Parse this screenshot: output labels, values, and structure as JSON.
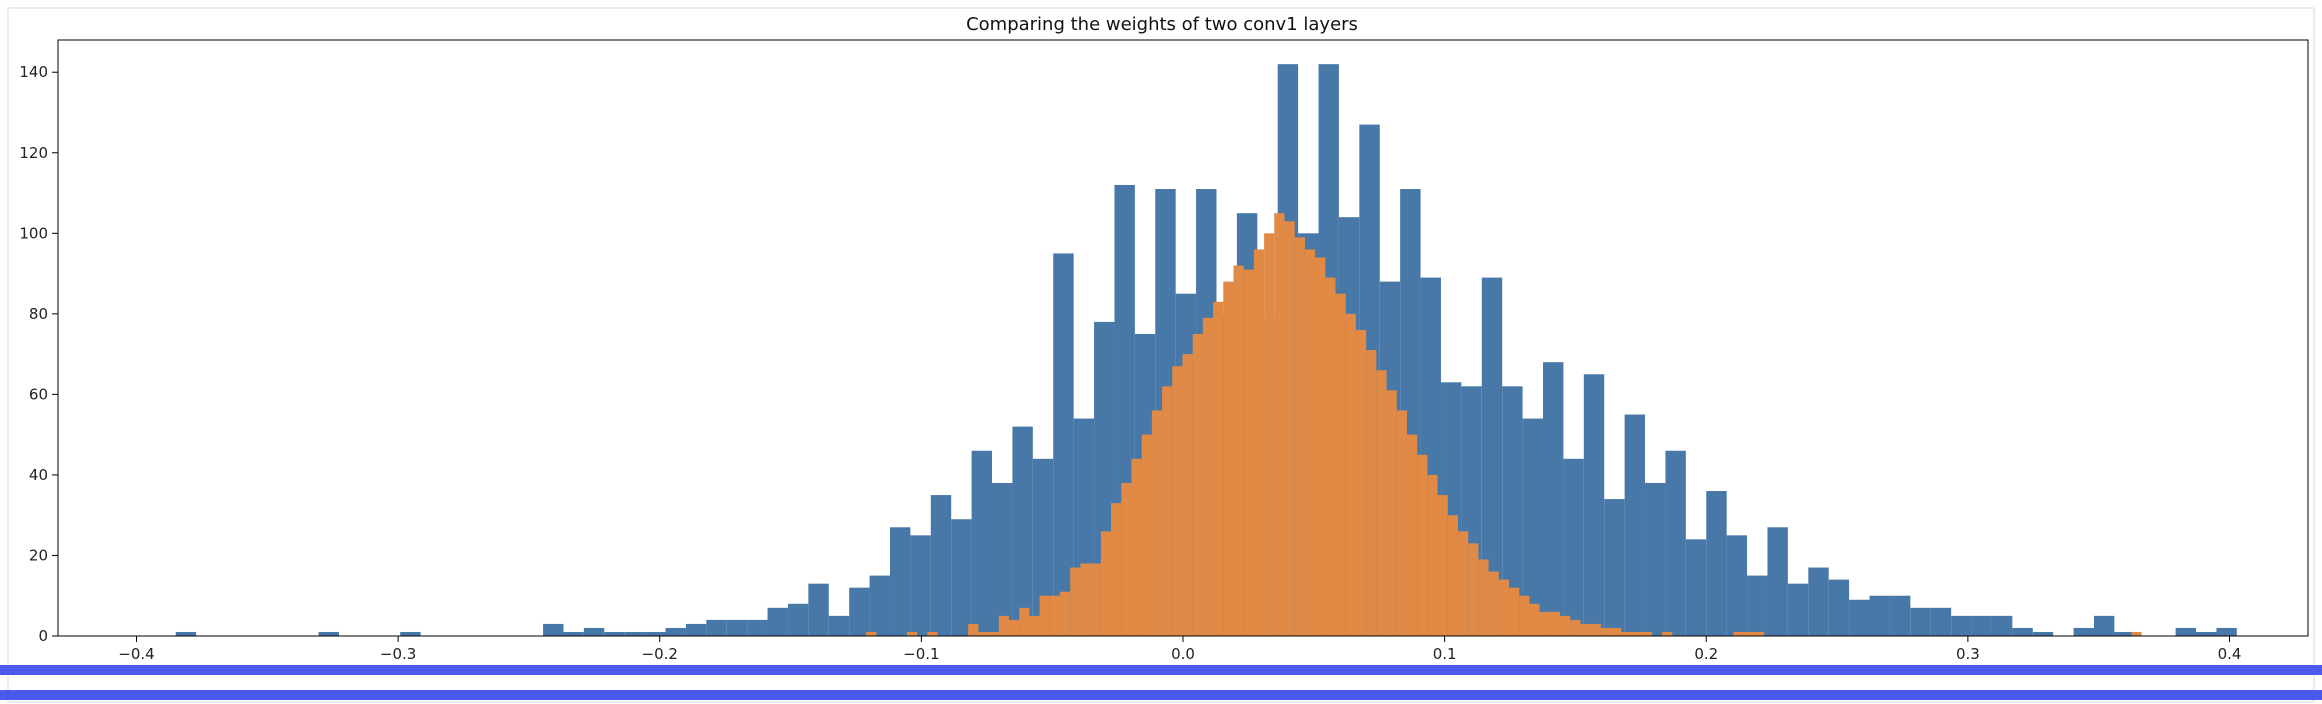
{
  "chart_data": {
    "type": "bar",
    "title": "Comparing the weights of two conv1 layers",
    "xlabel": "",
    "ylabel": "",
    "xlim": [
      -0.43,
      0.43
    ],
    "ylim": [
      0,
      148
    ],
    "x_ticks": [
      -0.4,
      -0.3,
      -0.2,
      -0.1,
      0.0,
      0.1,
      0.2,
      0.3,
      0.4
    ],
    "x_tick_labels": [
      "−0.4",
      "−0.3",
      "−0.2",
      "−0.1",
      "0.0",
      "0.1",
      "0.2",
      "0.3",
      "0.4"
    ],
    "y_ticks": [
      0,
      20,
      40,
      60,
      80,
      100,
      120,
      140
    ],
    "y_tick_labels": [
      "0",
      "20",
      "40",
      "60",
      "80",
      "100",
      "120",
      "140"
    ],
    "grid": false,
    "series": [
      {
        "color": "#4878a8",
        "bin_start": -0.385,
        "bin_width": 0.0078,
        "values": [
          1,
          0,
          0,
          0,
          0,
          0,
          0,
          1,
          0,
          0,
          0,
          1,
          0,
          0,
          0,
          0,
          0,
          0,
          3,
          1,
          2,
          1,
          1,
          1,
          2,
          3,
          4,
          4,
          4,
          7,
          8,
          13,
          5,
          12,
          15,
          27,
          25,
          35,
          29,
          46,
          38,
          52,
          44,
          95,
          54,
          78,
          112,
          75,
          111,
          85,
          111,
          80,
          105,
          79,
          142,
          100,
          142,
          104,
          127,
          88,
          111,
          89,
          63,
          62,
          89,
          62,
          54,
          68,
          44,
          65,
          34,
          55,
          38,
          46,
          24,
          36,
          25,
          15,
          27,
          13,
          17,
          14,
          9,
          10,
          10,
          7,
          7,
          5,
          5,
          5,
          2,
          1,
          0,
          2,
          5,
          1,
          0,
          0,
          2,
          1,
          2,
          0,
          0,
          0,
          0,
          0,
          0,
          0,
          0,
          1
        ]
      },
      {
        "color": "#e08a45",
        "bin_start": -0.125,
        "bin_width": 0.0039,
        "values": [
          0,
          1,
          0,
          0,
          0,
          1,
          0,
          1,
          0,
          0,
          0,
          3,
          1,
          1,
          5,
          4,
          7,
          5,
          10,
          10,
          11,
          17,
          18,
          18,
          26,
          33,
          38,
          44,
          50,
          56,
          62,
          67,
          70,
          75,
          79,
          83,
          88,
          92,
          91,
          96,
          100,
          105,
          103,
          99,
          96,
          94,
          89,
          85,
          80,
          76,
          71,
          66,
          61,
          56,
          50,
          45,
          40,
          35,
          30,
          26,
          23,
          19,
          16,
          14,
          12,
          10,
          8,
          6,
          6,
          5,
          4,
          3,
          3,
          2,
          2,
          1,
          1,
          1,
          0,
          1,
          0,
          0,
          0,
          0,
          0,
          0,
          1,
          1,
          1,
          0,
          0,
          0,
          0,
          0,
          0,
          0,
          0,
          0,
          0,
          0,
          0,
          0,
          0,
          0,
          0,
          0,
          0,
          0,
          0,
          0,
          0,
          0,
          0,
          0,
          0,
          0,
          0,
          0,
          0,
          0,
          0,
          0,
          0,
          0,
          0,
          1
        ]
      }
    ]
  }
}
